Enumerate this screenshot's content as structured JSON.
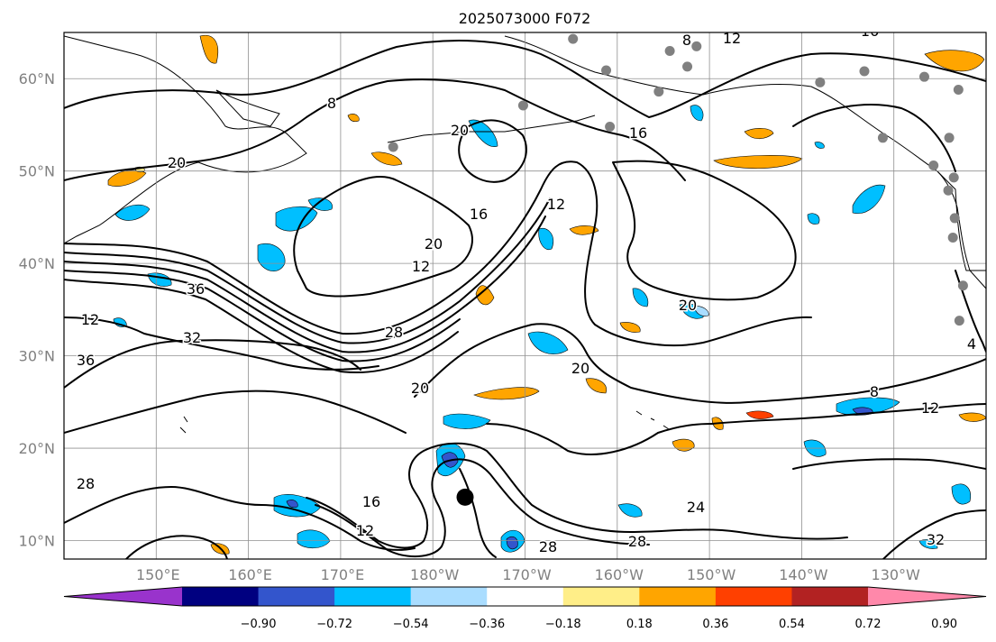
{
  "title": "2025073000 F072",
  "map": {
    "lon_min": 140,
    "lon_max": 240,
    "lat_min": 8,
    "lat_max": 65,
    "lat_ticks": [
      {
        "value": 10,
        "label": "10°N"
      },
      {
        "value": 20,
        "label": "20°N"
      },
      {
        "value": 30,
        "label": "30°N"
      },
      {
        "value": 40,
        "label": "40°N"
      },
      {
        "value": 50,
        "label": "50°N"
      },
      {
        "value": 60,
        "label": "60°N"
      }
    ],
    "lon_ticks": [
      {
        "value": 150,
        "label": "150°E"
      },
      {
        "value": 160,
        "label": "160°E"
      },
      {
        "value": 170,
        "label": "170°E"
      },
      {
        "value": 180,
        "label": "180°W"
      },
      {
        "value": 190,
        "label": "170°W"
      },
      {
        "value": 200,
        "label": "160°W"
      },
      {
        "value": 210,
        "label": "150°W"
      },
      {
        "value": 220,
        "label": "140°W"
      },
      {
        "value": 230,
        "label": "130°W"
      }
    ],
    "grid": true,
    "contour_color": "#000000",
    "contour_labels": [
      "8",
      "12",
      "16",
      "20",
      "12",
      "16",
      "20",
      "12",
      "36",
      "32",
      "36",
      "28",
      "20",
      "20",
      "8",
      "12",
      "28",
      "16",
      "12",
      "28",
      "24",
      "28",
      "32",
      "4",
      "16",
      "20",
      "20",
      "12",
      "8"
    ],
    "storm_marker": {
      "lon": 183.5,
      "lat": 14.7,
      "color": "#000000"
    },
    "station_color": "#808080",
    "stations": [
      {
        "lon": 195.2,
        "lat": 64.3
      },
      {
        "lon": 198.8,
        "lat": 60.9
      },
      {
        "lon": 205.7,
        "lat": 63.0
      },
      {
        "lon": 204.5,
        "lat": 58.6
      },
      {
        "lon": 207.6,
        "lat": 61.3
      },
      {
        "lon": 208.6,
        "lat": 63.5
      },
      {
        "lon": 199.2,
        "lat": 54.8
      },
      {
        "lon": 189.8,
        "lat": 57.1
      },
      {
        "lon": 175.7,
        "lat": 52.6
      },
      {
        "lon": 222.0,
        "lat": 59.6
      },
      {
        "lon": 226.8,
        "lat": 60.8
      },
      {
        "lon": 233.3,
        "lat": 60.2
      },
      {
        "lon": 237.0,
        "lat": 58.8
      },
      {
        "lon": 228.8,
        "lat": 53.6
      },
      {
        "lon": 236.0,
        "lat": 53.6
      },
      {
        "lon": 234.3,
        "lat": 50.6
      },
      {
        "lon": 236.5,
        "lat": 49.3
      },
      {
        "lon": 235.9,
        "lat": 47.9
      },
      {
        "lon": 236.6,
        "lat": 44.9
      },
      {
        "lon": 236.4,
        "lat": 42.8
      },
      {
        "lon": 237.5,
        "lat": 37.6
      },
      {
        "lon": 237.1,
        "lat": 33.8
      }
    ]
  },
  "colorbar": {
    "ticks": [
      "−0.90",
      "−0.72",
      "−0.54",
      "−0.36",
      "−0.18",
      "0.18",
      "0.36",
      "0.54",
      "0.72",
      "0.90"
    ],
    "colors": [
      "#9933cc",
      "#000080",
      "#3355cc",
      "#00bfff",
      "#aaddff",
      "#ffffff",
      "#ffee88",
      "#ffa500",
      "#ff4000",
      "#b22222",
      "#ff88aa"
    ]
  },
  "shading_colors": {
    "light_blue": "#aaddff",
    "cyan": "#00bfff",
    "blue": "#3355cc",
    "yellow": "#ffee88",
    "orange": "#ffa500",
    "red_orange": "#ff4000"
  }
}
